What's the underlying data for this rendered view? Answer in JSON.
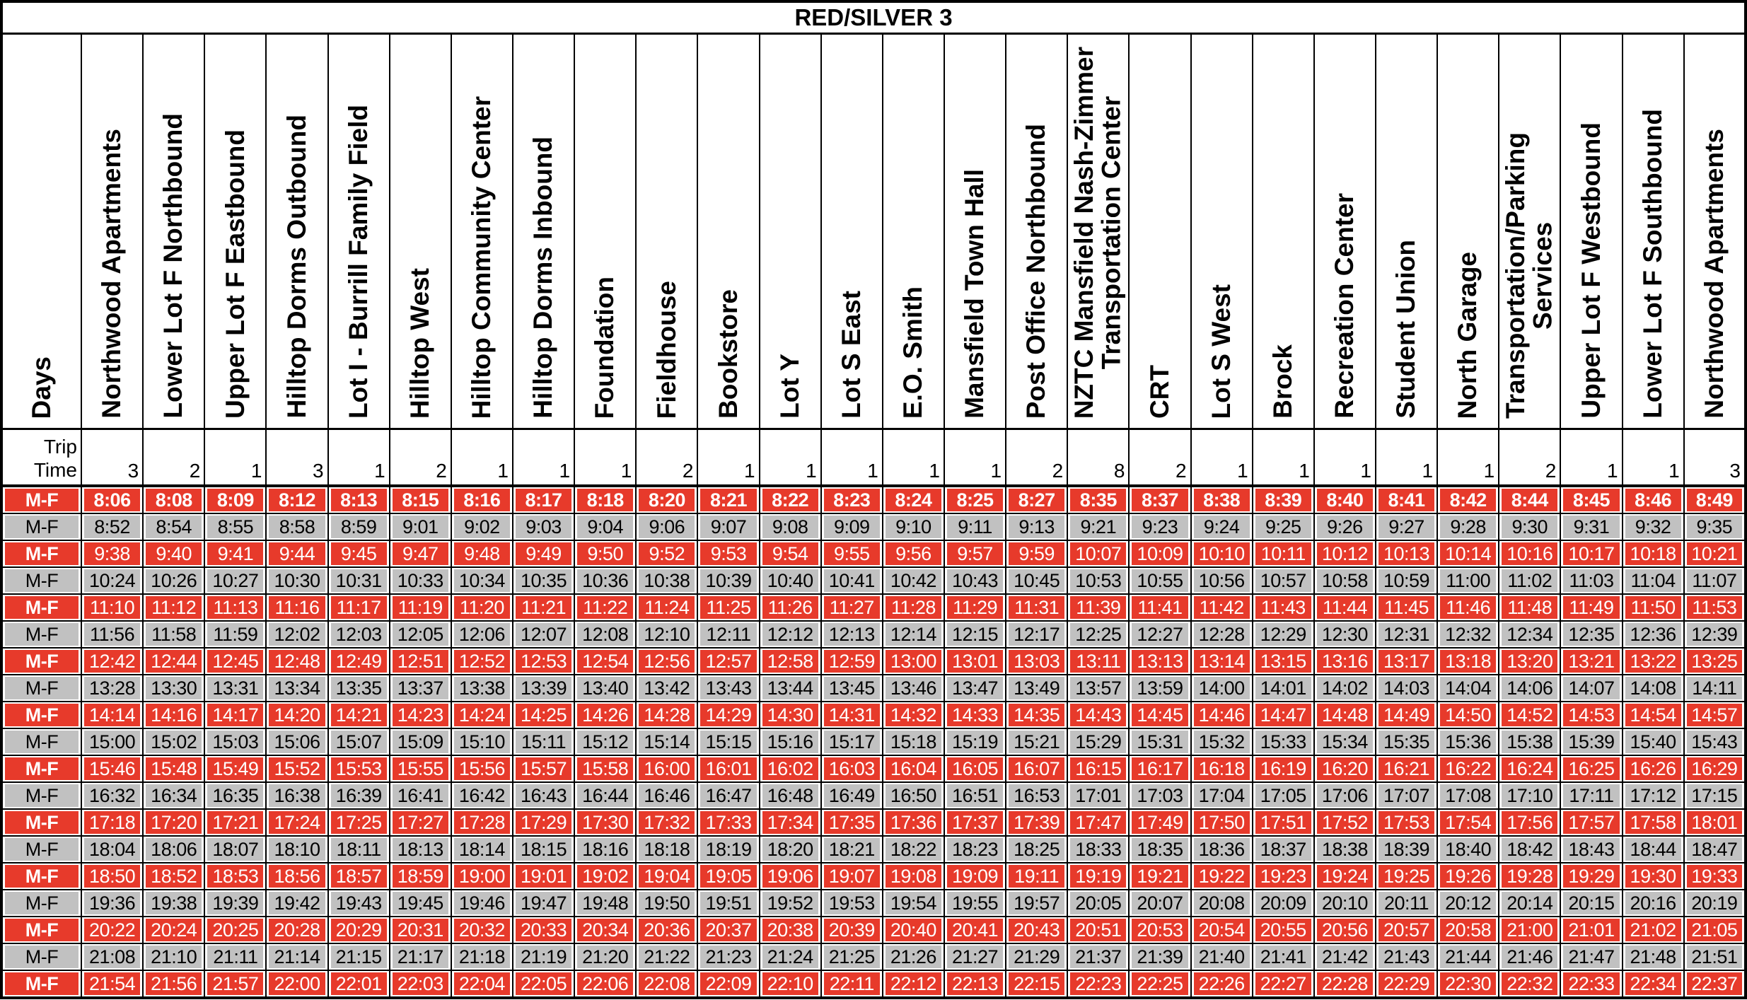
{
  "title": "RED/SILVER 3",
  "days_header": "Days",
  "trip_time_label": "Trip\nTime",
  "colors": {
    "red_row_bg": "#E73A2B",
    "red_row_text": "#FFFFFF",
    "gray_row_bg": "#C1C1C1",
    "gray_row_text": "#000000",
    "border": "#000000",
    "background": "#FFFFFF"
  },
  "stops": [
    {
      "label": "Northwood Apartments",
      "trip_time": "3"
    },
    {
      "label": "Lower Lot F Northbound",
      "trip_time": "2"
    },
    {
      "label": "Upper Lot F Eastbound",
      "trip_time": "1"
    },
    {
      "label": "Hilltop Dorms Outbound",
      "trip_time": "3"
    },
    {
      "label": "Lot I - Burrill Family Field",
      "trip_time": "1"
    },
    {
      "label": "Hilltop West",
      "trip_time": "2"
    },
    {
      "label": "Hilltop Community Center",
      "trip_time": "1"
    },
    {
      "label": "Hilltop Dorms Inbound",
      "trip_time": "1"
    },
    {
      "label": "Foundation",
      "trip_time": "1"
    },
    {
      "label": "Fieldhouse",
      "trip_time": "2"
    },
    {
      "label": "Bookstore",
      "trip_time": "1"
    },
    {
      "label": "Lot Y",
      "trip_time": "1"
    },
    {
      "label": "Lot S East",
      "trip_time": "1"
    },
    {
      "label": "E.O. Smith",
      "trip_time": "1"
    },
    {
      "label": "Mansfield Town Hall",
      "trip_time": "1"
    },
    {
      "label": "Post Office Northbound",
      "trip_time": "2"
    },
    {
      "label": "NZTC Mansfield Nash-Zimmer\nTransportation Center",
      "trip_time": "8"
    },
    {
      "label": "CRT",
      "trip_time": "2"
    },
    {
      "label": "Lot S West",
      "trip_time": "1"
    },
    {
      "label": "Brock",
      "trip_time": "1"
    },
    {
      "label": "Recreation Center",
      "trip_time": "1"
    },
    {
      "label": "Student Union",
      "trip_time": "1"
    },
    {
      "label": "North Garage",
      "trip_time": "1"
    },
    {
      "label": "Transportation/Parking\nServices",
      "trip_time": "2"
    },
    {
      "label": "Upper Lot F Westbound",
      "trip_time": "1"
    },
    {
      "label": "Lower Lot F Southbound",
      "trip_time": "1"
    },
    {
      "label": "Northwood Apartments",
      "trip_time": "3"
    }
  ],
  "rows": [
    {
      "days": "M-F",
      "style": "red-bold",
      "times": [
        "8:06",
        "8:08",
        "8:09",
        "8:12",
        "8:13",
        "8:15",
        "8:16",
        "8:17",
        "8:18",
        "8:20",
        "8:21",
        "8:22",
        "8:23",
        "8:24",
        "8:25",
        "8:27",
        "8:35",
        "8:37",
        "8:38",
        "8:39",
        "8:40",
        "8:41",
        "8:42",
        "8:44",
        "8:45",
        "8:46",
        "8:49"
      ]
    },
    {
      "days": "M-F",
      "style": "gray",
      "times": [
        "8:52",
        "8:54",
        "8:55",
        "8:58",
        "8:59",
        "9:01",
        "9:02",
        "9:03",
        "9:04",
        "9:06",
        "9:07",
        "9:08",
        "9:09",
        "9:10",
        "9:11",
        "9:13",
        "9:21",
        "9:23",
        "9:24",
        "9:25",
        "9:26",
        "9:27",
        "9:28",
        "9:30",
        "9:31",
        "9:32",
        "9:35"
      ]
    },
    {
      "days": "M-F",
      "style": "red",
      "times": [
        "9:38",
        "9:40",
        "9:41",
        "9:44",
        "9:45",
        "9:47",
        "9:48",
        "9:49",
        "9:50",
        "9:52",
        "9:53",
        "9:54",
        "9:55",
        "9:56",
        "9:57",
        "9:59",
        "10:07",
        "10:09",
        "10:10",
        "10:11",
        "10:12",
        "10:13",
        "10:14",
        "10:16",
        "10:17",
        "10:18",
        "10:21"
      ]
    },
    {
      "days": "M-F",
      "style": "gray",
      "times": [
        "10:24",
        "10:26",
        "10:27",
        "10:30",
        "10:31",
        "10:33",
        "10:34",
        "10:35",
        "10:36",
        "10:38",
        "10:39",
        "10:40",
        "10:41",
        "10:42",
        "10:43",
        "10:45",
        "10:53",
        "10:55",
        "10:56",
        "10:57",
        "10:58",
        "10:59",
        "11:00",
        "11:02",
        "11:03",
        "11:04",
        "11:07"
      ]
    },
    {
      "days": "M-F",
      "style": "red",
      "times": [
        "11:10",
        "11:12",
        "11:13",
        "11:16",
        "11:17",
        "11:19",
        "11:20",
        "11:21",
        "11:22",
        "11:24",
        "11:25",
        "11:26",
        "11:27",
        "11:28",
        "11:29",
        "11:31",
        "11:39",
        "11:41",
        "11:42",
        "11:43",
        "11:44",
        "11:45",
        "11:46",
        "11:48",
        "11:49",
        "11:50",
        "11:53"
      ]
    },
    {
      "days": "M-F",
      "style": "gray",
      "times": [
        "11:56",
        "11:58",
        "11:59",
        "12:02",
        "12:03",
        "12:05",
        "12:06",
        "12:07",
        "12:08",
        "12:10",
        "12:11",
        "12:12",
        "12:13",
        "12:14",
        "12:15",
        "12:17",
        "12:25",
        "12:27",
        "12:28",
        "12:29",
        "12:30",
        "12:31",
        "12:32",
        "12:34",
        "12:35",
        "12:36",
        "12:39"
      ]
    },
    {
      "days": "M-F",
      "style": "red",
      "times": [
        "12:42",
        "12:44",
        "12:45",
        "12:48",
        "12:49",
        "12:51",
        "12:52",
        "12:53",
        "12:54",
        "12:56",
        "12:57",
        "12:58",
        "12:59",
        "13:00",
        "13:01",
        "13:03",
        "13:11",
        "13:13",
        "13:14",
        "13:15",
        "13:16",
        "13:17",
        "13:18",
        "13:20",
        "13:21",
        "13:22",
        "13:25"
      ]
    },
    {
      "days": "M-F",
      "style": "gray",
      "times": [
        "13:28",
        "13:30",
        "13:31",
        "13:34",
        "13:35",
        "13:37",
        "13:38",
        "13:39",
        "13:40",
        "13:42",
        "13:43",
        "13:44",
        "13:45",
        "13:46",
        "13:47",
        "13:49",
        "13:57",
        "13:59",
        "14:00",
        "14:01",
        "14:02",
        "14:03",
        "14:04",
        "14:06",
        "14:07",
        "14:08",
        "14:11"
      ]
    },
    {
      "days": "M-F",
      "style": "red",
      "times": [
        "14:14",
        "14:16",
        "14:17",
        "14:20",
        "14:21",
        "14:23",
        "14:24",
        "14:25",
        "14:26",
        "14:28",
        "14:29",
        "14:30",
        "14:31",
        "14:32",
        "14:33",
        "14:35",
        "14:43",
        "14:45",
        "14:46",
        "14:47",
        "14:48",
        "14:49",
        "14:50",
        "14:52",
        "14:53",
        "14:54",
        "14:57"
      ]
    },
    {
      "days": "M-F",
      "style": "gray",
      "times": [
        "15:00",
        "15:02",
        "15:03",
        "15:06",
        "15:07",
        "15:09",
        "15:10",
        "15:11",
        "15:12",
        "15:14",
        "15:15",
        "15:16",
        "15:17",
        "15:18",
        "15:19",
        "15:21",
        "15:29",
        "15:31",
        "15:32",
        "15:33",
        "15:34",
        "15:35",
        "15:36",
        "15:38",
        "15:39",
        "15:40",
        "15:43"
      ]
    },
    {
      "days": "M-F",
      "style": "red",
      "times": [
        "15:46",
        "15:48",
        "15:49",
        "15:52",
        "15:53",
        "15:55",
        "15:56",
        "15:57",
        "15:58",
        "16:00",
        "16:01",
        "16:02",
        "16:03",
        "16:04",
        "16:05",
        "16:07",
        "16:15",
        "16:17",
        "16:18",
        "16:19",
        "16:20",
        "16:21",
        "16:22",
        "16:24",
        "16:25",
        "16:26",
        "16:29"
      ]
    },
    {
      "days": "M-F",
      "style": "gray",
      "times": [
        "16:32",
        "16:34",
        "16:35",
        "16:38",
        "16:39",
        "16:41",
        "16:42",
        "16:43",
        "16:44",
        "16:46",
        "16:47",
        "16:48",
        "16:49",
        "16:50",
        "16:51",
        "16:53",
        "17:01",
        "17:03",
        "17:04",
        "17:05",
        "17:06",
        "17:07",
        "17:08",
        "17:10",
        "17:11",
        "17:12",
        "17:15"
      ]
    },
    {
      "days": "M-F",
      "style": "red",
      "times": [
        "17:18",
        "17:20",
        "17:21",
        "17:24",
        "17:25",
        "17:27",
        "17:28",
        "17:29",
        "17:30",
        "17:32",
        "17:33",
        "17:34",
        "17:35",
        "17:36",
        "17:37",
        "17:39",
        "17:47",
        "17:49",
        "17:50",
        "17:51",
        "17:52",
        "17:53",
        "17:54",
        "17:56",
        "17:57",
        "17:58",
        "18:01"
      ]
    },
    {
      "days": "M-F",
      "style": "gray",
      "times": [
        "18:04",
        "18:06",
        "18:07",
        "18:10",
        "18:11",
        "18:13",
        "18:14",
        "18:15",
        "18:16",
        "18:18",
        "18:19",
        "18:20",
        "18:21",
        "18:22",
        "18:23",
        "18:25",
        "18:33",
        "18:35",
        "18:36",
        "18:37",
        "18:38",
        "18:39",
        "18:40",
        "18:42",
        "18:43",
        "18:44",
        "18:47"
      ]
    },
    {
      "days": "M-F",
      "style": "red",
      "times": [
        "18:50",
        "18:52",
        "18:53",
        "18:56",
        "18:57",
        "18:59",
        "19:00",
        "19:01",
        "19:02",
        "19:04",
        "19:05",
        "19:06",
        "19:07",
        "19:08",
        "19:09",
        "19:11",
        "19:19",
        "19:21",
        "19:22",
        "19:23",
        "19:24",
        "19:25",
        "19:26",
        "19:28",
        "19:29",
        "19:30",
        "19:33"
      ]
    },
    {
      "days": "M-F",
      "style": "gray",
      "times": [
        "19:36",
        "19:38",
        "19:39",
        "19:42",
        "19:43",
        "19:45",
        "19:46",
        "19:47",
        "19:48",
        "19:50",
        "19:51",
        "19:52",
        "19:53",
        "19:54",
        "19:55",
        "19:57",
        "20:05",
        "20:07",
        "20:08",
        "20:09",
        "20:10",
        "20:11",
        "20:12",
        "20:14",
        "20:15",
        "20:16",
        "20:19"
      ]
    },
    {
      "days": "M-F",
      "style": "red",
      "times": [
        "20:22",
        "20:24",
        "20:25",
        "20:28",
        "20:29",
        "20:31",
        "20:32",
        "20:33",
        "20:34",
        "20:36",
        "20:37",
        "20:38",
        "20:39",
        "20:40",
        "20:41",
        "20:43",
        "20:51",
        "20:53",
        "20:54",
        "20:55",
        "20:56",
        "20:57",
        "20:58",
        "21:00",
        "21:01",
        "21:02",
        "21:05"
      ]
    },
    {
      "days": "M-F",
      "style": "gray",
      "times": [
        "21:08",
        "21:10",
        "21:11",
        "21:14",
        "21:15",
        "21:17",
        "21:18",
        "21:19",
        "21:20",
        "21:22",
        "21:23",
        "21:24",
        "21:25",
        "21:26",
        "21:27",
        "21:29",
        "21:37",
        "21:39",
        "21:40",
        "21:41",
        "21:42",
        "21:43",
        "21:44",
        "21:46",
        "21:47",
        "21:48",
        "21:51"
      ]
    },
    {
      "days": "M-F",
      "style": "red",
      "times": [
        "21:54",
        "21:56",
        "21:57",
        "22:00",
        "22:01",
        "22:03",
        "22:04",
        "22:05",
        "22:06",
        "22:08",
        "22:09",
        "22:10",
        "22:11",
        "22:12",
        "22:13",
        "22:15",
        "22:23",
        "22:25",
        "22:26",
        "22:27",
        "22:28",
        "22:29",
        "22:30",
        "22:32",
        "22:33",
        "22:34",
        "22:37"
      ]
    }
  ]
}
